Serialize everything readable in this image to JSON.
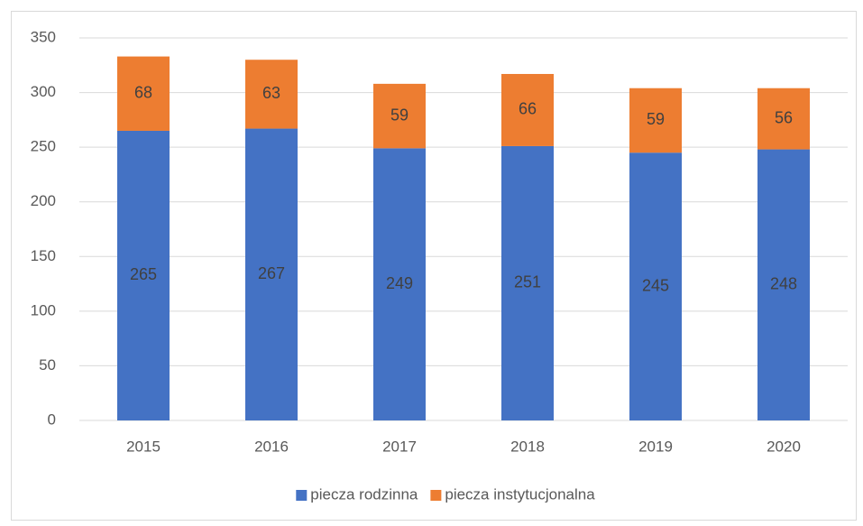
{
  "chart_data": {
    "type": "stacked_bar",
    "categories": [
      "2015",
      "2016",
      "2017",
      "2018",
      "2019",
      "2020"
    ],
    "series": [
      {
        "name": "piecza rodzinna",
        "color": "#4472c4",
        "values": [
          265,
          267,
          249,
          251,
          245,
          248
        ]
      },
      {
        "name": "piecza instytucjonalna",
        "color": "#ed7d31",
        "values": [
          68,
          63,
          59,
          66,
          59,
          56
        ]
      }
    ],
    "ylim": [
      0,
      350
    ],
    "yticks": [
      0,
      50,
      100,
      150,
      200,
      250,
      300,
      350
    ],
    "grid": true,
    "legend": "bottom"
  }
}
